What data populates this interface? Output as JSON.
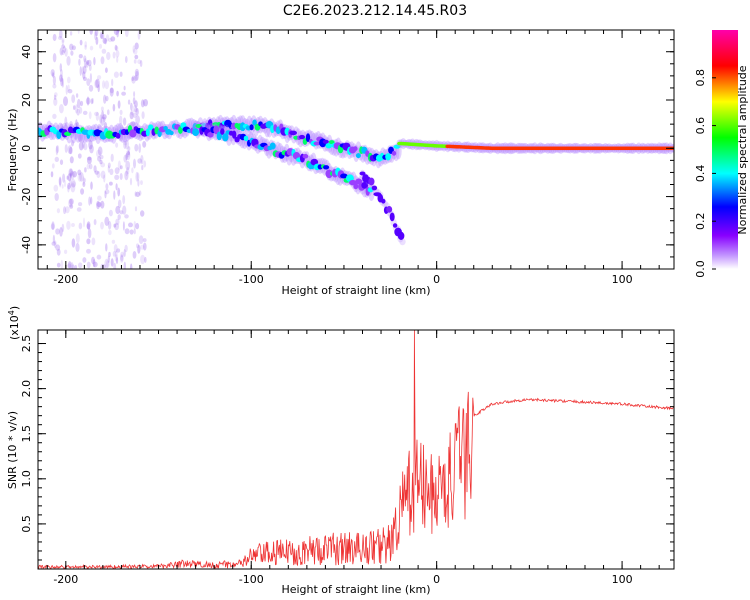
{
  "title": "C2E6.2023.212.14.45.R03",
  "chart_data": [
    {
      "type": "heatmap",
      "name": "spectrogram",
      "xlabel": "Height of straight line (km)",
      "ylabel": "Frequency (Hz)",
      "xlim": [
        -215,
        128
      ],
      "ylim": [
        -50,
        49
      ],
      "xticks": [
        -200,
        -100,
        0,
        100
      ],
      "xtick_labels": [
        "-200",
        "-100",
        "0",
        "100"
      ],
      "yticks": [
        -40,
        -20,
        0,
        20,
        40
      ],
      "ytick_labels": [
        "-40",
        "-20",
        "0",
        "20",
        "40"
      ],
      "colorbar": {
        "label": "Normalized spectral amplitude",
        "range": [
          0.0,
          1.0
        ],
        "ticks": [
          0.0,
          0.2,
          0.4,
          0.6,
          0.8
        ],
        "tick_labels": [
          "0.0",
          "0.2",
          "0.4",
          "0.6",
          "0.8"
        ],
        "colors": [
          "#ffffff",
          "#8800ff",
          "#0000ff",
          "#00ffff",
          "#00ff00",
          "#ffff00",
          "#ff0000",
          "#ff00aa"
        ]
      },
      "tracks": [
        {
          "name": "upper band",
          "x": [
            -215,
            -180,
            -140,
            -110,
            -90,
            -70,
            -50,
            -30,
            -20
          ],
          "y": [
            7,
            6,
            8,
            10,
            9,
            4,
            0,
            -4,
            0
          ]
        },
        {
          "name": "lower descending band",
          "x": [
            -130,
            -110,
            -90,
            -70,
            -50,
            -35
          ],
          "y": [
            8,
            5,
            0,
            -5,
            -12,
            -18
          ]
        },
        {
          "name": "faint descending band",
          "x": [
            -40,
            -30,
            -22,
            -18
          ],
          "y": [
            -10,
            -20,
            -32,
            -40
          ]
        },
        {
          "name": "steady line",
          "x": [
            -20,
            0,
            30,
            60,
            90,
            128
          ],
          "y": [
            2,
            1,
            0,
            0,
            0,
            0
          ]
        }
      ]
    },
    {
      "type": "line",
      "name": "snr",
      "xlabel": "Height of straight line (km)",
      "ylabel": "SNR (10 * v/v)",
      "y_multiplier": "(x10",
      "y_multiplier_exp": "4",
      "y_multiplier_close": ")",
      "xlim": [
        -215,
        128
      ],
      "ylim": [
        0,
        2.65
      ],
      "xticks": [
        -200,
        -100,
        0,
        100
      ],
      "xtick_labels": [
        "-200",
        "-100",
        "0",
        "100"
      ],
      "yticks": [
        0.5,
        1.0,
        1.5,
        2.0,
        2.5
      ],
      "ytick_labels": [
        "0.5",
        "1.0",
        "1.5",
        "2.0",
        "2.5"
      ],
      "color": "#ee3333",
      "envelope": {
        "x": [
          -215,
          -180,
          -150,
          -140,
          -120,
          -105,
          -100,
          -90,
          -70,
          -50,
          -40,
          -30,
          -25,
          -20,
          -15,
          -10,
          -5,
          0,
          5,
          10,
          15,
          20,
          30,
          40,
          50,
          60,
          80,
          100,
          115,
          128
        ],
        "y": [
          0.04,
          0.04,
          0.05,
          0.1,
          0.08,
          0.1,
          0.25,
          0.3,
          0.35,
          0.4,
          0.4,
          0.45,
          0.5,
          0.8,
          1.0,
          1.2,
          1.0,
          1.0,
          1.1,
          1.3,
          1.5,
          1.7,
          1.83,
          1.86,
          1.88,
          1.87,
          1.85,
          1.83,
          1.8,
          1.78
        ]
      },
      "peak": {
        "x": -12,
        "y": 2.65
      }
    }
  ]
}
